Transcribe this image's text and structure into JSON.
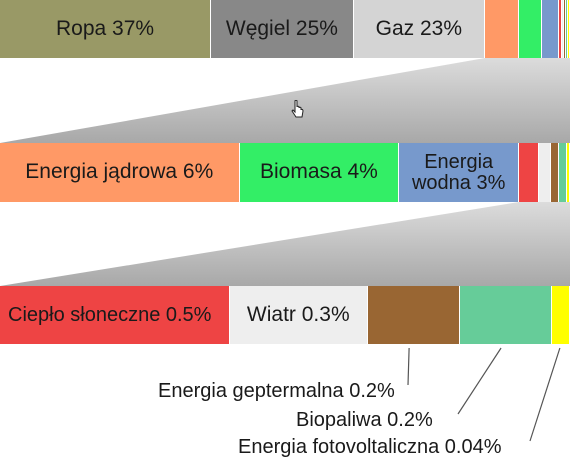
{
  "chart_data": {
    "type": "bar",
    "title": "",
    "xlabel": "",
    "ylabel": "",
    "unit": "%",
    "levels": [
      {
        "segments": [
          {
            "label": "Ropa 37%",
            "value": 37,
            "color": "#999966"
          },
          {
            "label": "Węgiel 25%",
            "value": 25,
            "color": "#888888"
          },
          {
            "label": "Gaz 23%",
            "value": 23,
            "color": "#d4d4d4"
          },
          {
            "label": "",
            "value": 6,
            "color": "#ff9966"
          },
          {
            "label": "",
            "value": 4,
            "color": "#33ee66"
          },
          {
            "label": "",
            "value": 3,
            "color": "#7799cc"
          },
          {
            "label": "",
            "value": 0.5,
            "color": "#ee4444"
          },
          {
            "label": "",
            "value": 0.3,
            "color": "#eeeeee"
          },
          {
            "label": "",
            "value": 0.2,
            "color": "#996633"
          },
          {
            "label": "",
            "value": 0.2,
            "color": "#66cc99"
          },
          {
            "label": "",
            "value": 0.04,
            "color": "#ffff00"
          }
        ]
      },
      {
        "segments": [
          {
            "label": "Energia jądrowa 6%",
            "value": 6,
            "color": "#ff9966"
          },
          {
            "label": "Biomasa 4%",
            "value": 4,
            "color": "#33ee66"
          },
          {
            "label": "Energia wodna 3%",
            "value": 3,
            "color": "#7799cc"
          },
          {
            "label": "",
            "value": 0.5,
            "color": "#ee4444"
          },
          {
            "label": "",
            "value": 0.3,
            "color": "#eeeeee"
          },
          {
            "label": "",
            "value": 0.2,
            "color": "#996633"
          },
          {
            "label": "",
            "value": 0.2,
            "color": "#66cc99"
          },
          {
            "label": "",
            "value": 0.04,
            "color": "#ffff00"
          }
        ]
      },
      {
        "segments": [
          {
            "label": "Ciepło słoneczne 0.5%",
            "value": 0.5,
            "color": "#ee4444"
          },
          {
            "label": "Wiatr 0.3%",
            "value": 0.3,
            "color": "#eeeeee"
          },
          {
            "label": "",
            "value": 0.2,
            "color": "#996633"
          },
          {
            "label": "",
            "value": 0.2,
            "color": "#66cc99"
          },
          {
            "label": "",
            "value": 0.04,
            "color": "#ffff00"
          }
        ]
      }
    ],
    "callouts": [
      {
        "label": "Energia geptermalna 0.2%"
      },
      {
        "label": "Biopaliwa 0.2%"
      },
      {
        "label": "Energia fotovoltaliczna 0.04%"
      }
    ],
    "legend": "none",
    "grid": false
  }
}
